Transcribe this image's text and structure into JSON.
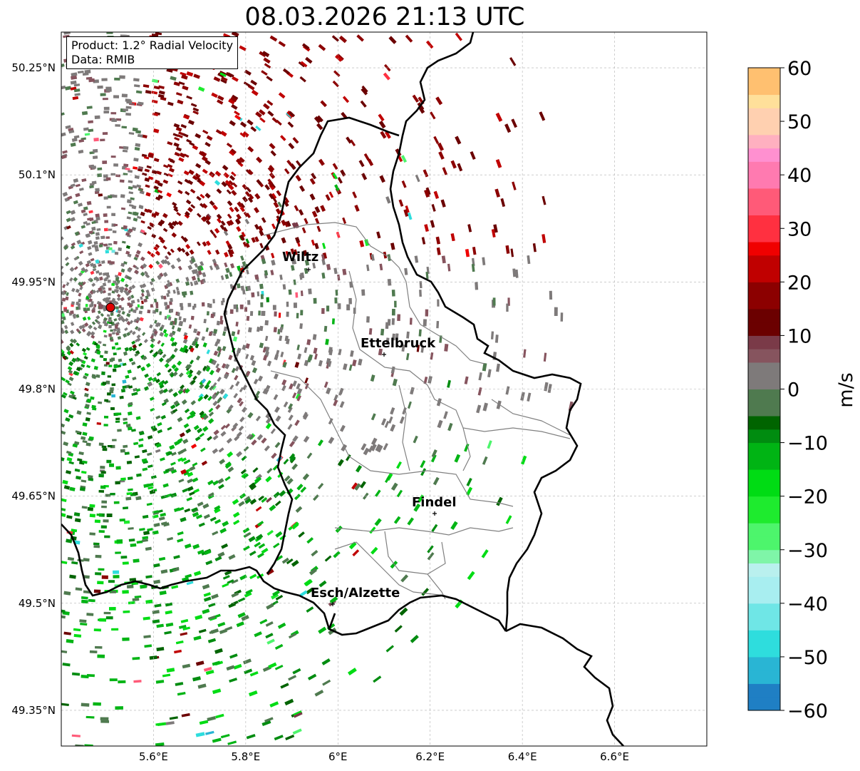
{
  "title": "08.03.2026 21:13 UTC",
  "info_box": {
    "product": "Product: 1.2° Radial Velocity",
    "source": "Data: RMIB"
  },
  "map": {
    "lon_range": [
      5.4,
      6.8
    ],
    "lat_range": [
      49.3,
      50.3
    ],
    "lon_ticks": [
      "5.6°E",
      "5.8°E",
      "6°E",
      "6.2°E",
      "6.4°E",
      "6.6°E"
    ],
    "lat_ticks": [
      "50.25°N",
      "50.1°N",
      "49.95°N",
      "49.8°N",
      "49.65°N",
      "49.5°N",
      "49.35°N"
    ],
    "grid": true,
    "radar_site_color": "#e00000",
    "cities": [
      {
        "name": "Wiltz"
      },
      {
        "name": "Ettelbruck"
      },
      {
        "name": "Findel"
      },
      {
        "name": "Esch/Alzette"
      }
    ]
  },
  "colorbar": {
    "label": "m/s",
    "min": -60,
    "max": 60,
    "ticks": [
      "60",
      "50",
      "40",
      "30",
      "20",
      "10",
      "0",
      "−10",
      "−20",
      "−30",
      "−40",
      "−50",
      "−60"
    ]
  }
}
